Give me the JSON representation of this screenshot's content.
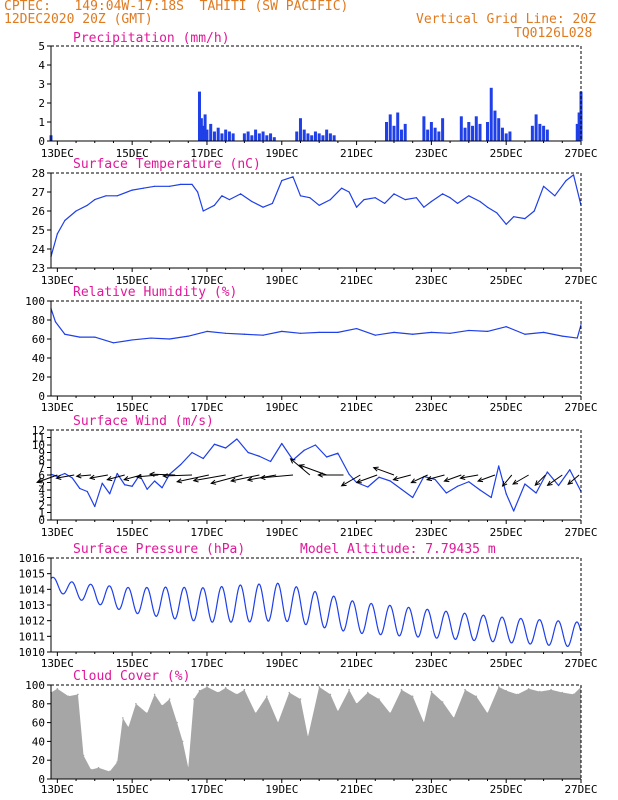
{
  "header": {
    "line1_left": "CPTEC:   149:04W-17:18S  TAHITI (SW PACIFIC)",
    "line2_left": "12DEC2020 20Z (GMT)",
    "line1_right": "Vertical Grid Line: 20Z",
    "line2_right": "TQ0126L028"
  },
  "colors": {
    "header": "#e07a1f",
    "title": "#e0189a",
    "series": "#1f3fe8",
    "cloud": "#a6a6a6",
    "arrow": "#000000"
  },
  "x_ticks": [
    "13DEC",
    "15DEC",
    "17DEC",
    "19DEC",
    "21DEC",
    "23DEC",
    "25DEC",
    "27DEC"
  ],
  "chart_data": [
    {
      "type": "bar",
      "title": "Precipitation (mm/h)",
      "ylim": [
        0,
        5
      ],
      "yticks": [
        "0",
        "1",
        "2",
        "3",
        "4",
        "5"
      ],
      "days": [
        12.83,
        16.8,
        16.85,
        16.9,
        16.95,
        17.0,
        17.1,
        17.2,
        17.3,
        17.4,
        17.5,
        17.6,
        17.7,
        18.0,
        18.1,
        18.2,
        18.3,
        18.4,
        18.5,
        18.6,
        18.7,
        18.8,
        19.4,
        19.5,
        19.6,
        19.7,
        19.8,
        19.9,
        20.0,
        20.1,
        20.2,
        20.3,
        20.4,
        21.8,
        21.9,
        22.0,
        22.1,
        22.2,
        22.3,
        22.8,
        22.9,
        23.0,
        23.1,
        23.2,
        23.3,
        23.8,
        23.9,
        24.0,
        24.1,
        24.2,
        24.3,
        24.5,
        24.6,
        24.7,
        24.8,
        24.9,
        25.0,
        25.1,
        25.7,
        25.8,
        25.9,
        26.0,
        26.1,
        26.9,
        26.95,
        27.0
      ],
      "values": [
        0.3,
        2.6,
        1.2,
        0.8,
        1.4,
        0.6,
        0.9,
        0.5,
        0.7,
        0.4,
        0.6,
        0.5,
        0.4,
        0.4,
        0.5,
        0.3,
        0.6,
        0.4,
        0.5,
        0.3,
        0.4,
        0.2,
        0.5,
        1.2,
        0.6,
        0.4,
        0.3,
        0.5,
        0.4,
        0.3,
        0.6,
        0.4,
        0.3,
        1.0,
        1.4,
        0.8,
        1.5,
        0.6,
        0.9,
        1.3,
        0.6,
        1.0,
        0.7,
        0.5,
        1.2,
        1.3,
        0.7,
        1.0,
        0.8,
        1.3,
        0.9,
        1.0,
        2.8,
        1.6,
        1.2,
        0.7,
        0.4,
        0.5,
        0.8,
        1.4,
        0.9,
        0.8,
        0.6,
        0.9,
        1.5,
        2.6
      ]
    },
    {
      "type": "line",
      "title": "Surface Temperature (nC)",
      "ylim": [
        23,
        28
      ],
      "yticks": [
        "23",
        "24",
        "25",
        "26",
        "27",
        "28"
      ],
      "x": [
        12.83,
        13.0,
        13.2,
        13.5,
        13.8,
        14.0,
        14.3,
        14.6,
        15.0,
        15.3,
        15.6,
        16.0,
        16.3,
        16.6,
        16.75,
        16.9,
        17.2,
        17.4,
        17.6,
        17.9,
        18.2,
        18.5,
        18.75,
        19.0,
        19.3,
        19.5,
        19.75,
        20.0,
        20.3,
        20.6,
        20.8,
        21.0,
        21.2,
        21.5,
        21.75,
        22.0,
        22.3,
        22.6,
        22.8,
        23.0,
        23.3,
        23.5,
        23.7,
        24.0,
        24.3,
        24.5,
        24.75,
        25.0,
        25.2,
        25.5,
        25.75,
        26.0,
        26.3,
        26.6,
        26.8,
        27.0
      ],
      "values": [
        23.6,
        24.8,
        25.5,
        26.0,
        26.3,
        26.6,
        26.8,
        26.8,
        27.1,
        27.2,
        27.3,
        27.3,
        27.4,
        27.4,
        27.0,
        26.0,
        26.3,
        26.8,
        26.6,
        26.9,
        26.5,
        26.2,
        26.4,
        27.6,
        27.8,
        26.8,
        26.7,
        26.3,
        26.6,
        27.2,
        27.0,
        26.2,
        26.6,
        26.7,
        26.4,
        26.9,
        26.6,
        26.7,
        26.2,
        26.5,
        26.9,
        26.7,
        26.4,
        26.8,
        26.5,
        26.2,
        25.9,
        25.3,
        25.7,
        25.6,
        26.0,
        27.3,
        26.8,
        27.6,
        27.9,
        26.3
      ]
    },
    {
      "type": "line",
      "title": "Relative Humidity (%)",
      "ylim": [
        0,
        100
      ],
      "yticks": [
        "0",
        "20",
        "40",
        "60",
        "80",
        "100"
      ],
      "x": [
        12.83,
        12.95,
        13.2,
        13.6,
        14.0,
        14.5,
        15.0,
        15.5,
        16.0,
        16.5,
        17.0,
        17.5,
        18.0,
        18.5,
        19.0,
        19.5,
        20.0,
        20.5,
        21.0,
        21.5,
        22.0,
        22.5,
        23.0,
        23.5,
        24.0,
        24.5,
        25.0,
        25.5,
        26.0,
        26.5,
        26.9,
        27.0
      ],
      "values": [
        92,
        78,
        65,
        62,
        62,
        56,
        59,
        61,
        60,
        63,
        68,
        66,
        65,
        64,
        68,
        66,
        67,
        67,
        71,
        64,
        67,
        65,
        67,
        66,
        69,
        68,
        73,
        65,
        67,
        63,
        61,
        75
      ]
    },
    {
      "type": "line",
      "title": "Surface Wind (m/s)",
      "ylim": [
        0,
        12
      ],
      "yticks": [
        "0",
        "1",
        "2",
        "3",
        "4",
        "5",
        "6",
        "7",
        "8",
        "9",
        "10",
        "11",
        "12"
      ],
      "x": [
        12.83,
        13.0,
        13.2,
        13.4,
        13.6,
        13.8,
        14.0,
        14.2,
        14.4,
        14.6,
        14.8,
        15.0,
        15.2,
        15.4,
        15.6,
        15.8,
        16.0,
        16.3,
        16.6,
        16.9,
        17.2,
        17.5,
        17.8,
        18.1,
        18.4,
        18.7,
        19.0,
        19.3,
        19.6,
        19.9,
        20.2,
        20.5,
        20.8,
        21.0,
        21.3,
        21.6,
        21.9,
        22.2,
        22.5,
        22.8,
        23.1,
        23.4,
        23.7,
        24.0,
        24.3,
        24.6,
        24.8,
        25.0,
        25.2,
        25.5,
        25.8,
        26.1,
        26.4,
        26.7,
        27.0
      ],
      "values": [
        6.1,
        5.8,
        6.2,
        5.6,
        4.2,
        3.8,
        1.8,
        4.9,
        3.5,
        6.2,
        4.7,
        4.5,
        6.0,
        4.1,
        5.2,
        4.3,
        6.1,
        7.4,
        9.0,
        8.2,
        10.1,
        9.6,
        10.8,
        9.0,
        8.5,
        7.8,
        10.2,
        8.0,
        9.3,
        10.0,
        8.4,
        8.9,
        6.1,
        5.0,
        4.4,
        5.7,
        5.2,
        4.1,
        3.0,
        5.8,
        5.4,
        3.6,
        4.5,
        5.1,
        4.0,
        3.0,
        7.2,
        3.5,
        1.2,
        4.8,
        3.6,
        6.4,
        4.6,
        6.7,
        3.8
      ],
      "vectors": [
        {
          "day": 13.0,
          "dir": 200,
          "mag": 6
        },
        {
          "day": 13.45,
          "dir": 190,
          "mag": 5
        },
        {
          "day": 13.9,
          "dir": 185,
          "mag": 4
        },
        {
          "day": 14.35,
          "dir": 190,
          "mag": 5
        },
        {
          "day": 14.8,
          "dir": 195,
          "mag": 5
        },
        {
          "day": 15.25,
          "dir": 195,
          "mag": 5
        },
        {
          "day": 15.7,
          "dir": 185,
          "mag": 6
        },
        {
          "day": 16.15,
          "dir": 178,
          "mag": 7
        },
        {
          "day": 16.6,
          "dir": 182,
          "mag": 8
        },
        {
          "day": 17.05,
          "dir": 192,
          "mag": 9
        },
        {
          "day": 17.5,
          "dir": 190,
          "mag": 9
        },
        {
          "day": 17.95,
          "dir": 195,
          "mag": 9
        },
        {
          "day": 18.4,
          "dir": 192,
          "mag": 8
        },
        {
          "day": 18.85,
          "dir": 190,
          "mag": 8
        },
        {
          "day": 19.3,
          "dir": 185,
          "mag": 9
        },
        {
          "day": 19.75,
          "dir": 140,
          "mag": 7
        },
        {
          "day": 20.2,
          "dir": 160,
          "mag": 8
        },
        {
          "day": 20.65,
          "dir": 180,
          "mag": 7
        },
        {
          "day": 21.1,
          "dir": 210,
          "mag": 6
        },
        {
          "day": 21.55,
          "dir": 200,
          "mag": 6
        },
        {
          "day": 22.0,
          "dir": 160,
          "mag": 6
        },
        {
          "day": 22.45,
          "dir": 195,
          "mag": 5
        },
        {
          "day": 22.9,
          "dir": 205,
          "mag": 5
        },
        {
          "day": 23.35,
          "dir": 195,
          "mag": 5
        },
        {
          "day": 23.8,
          "dir": 200,
          "mag": 5
        },
        {
          "day": 24.25,
          "dir": 190,
          "mag": 5
        },
        {
          "day": 24.7,
          "dir": 200,
          "mag": 5
        },
        {
          "day": 25.15,
          "dir": 230,
          "mag": 4
        },
        {
          "day": 25.6,
          "dir": 210,
          "mag": 5
        },
        {
          "day": 26.05,
          "dir": 225,
          "mag": 4
        },
        {
          "day": 26.5,
          "dir": 215,
          "mag": 5
        },
        {
          "day": 26.95,
          "dir": 220,
          "mag": 4
        }
      ]
    },
    {
      "type": "line",
      "title": "Surface Pressure (hPa)",
      "annotation": "Model Altitude: 7.79435 m",
      "ylim": [
        1010,
        1016
      ],
      "yticks": [
        "1010",
        "1011",
        "1012",
        "1013",
        "1014",
        "1015",
        "1016"
      ],
      "base": [
        [
          12.83,
          1014.4
        ],
        [
          13.5,
          1013.9
        ],
        [
          15,
          1013.3
        ],
        [
          17,
          1013.0
        ],
        [
          19,
          1013.2
        ],
        [
          21,
          1012.2
        ],
        [
          23,
          1011.8
        ],
        [
          25,
          1011.4
        ],
        [
          27,
          1011.1
        ]
      ],
      "amp": [
        [
          12.83,
          0.4
        ],
        [
          14,
          0.6
        ],
        [
          16,
          1.0
        ],
        [
          18,
          1.2
        ],
        [
          19,
          1.2
        ],
        [
          21,
          1.0
        ],
        [
          23,
          0.9
        ],
        [
          25,
          0.8
        ],
        [
          27,
          0.8
        ]
      ],
      "cycles_per_day": 2
    },
    {
      "type": "area",
      "title": "Cloud Cover (%)",
      "ylim": [
        0,
        100
      ],
      "yticks": [
        "0",
        "20",
        "40",
        "60",
        "80",
        "100"
      ],
      "x": [
        12.83,
        13.0,
        13.3,
        13.55,
        13.7,
        13.9,
        14.1,
        14.4,
        14.6,
        14.75,
        14.9,
        15.1,
        15.4,
        15.6,
        15.8,
        16.0,
        16.2,
        16.35,
        16.5,
        16.65,
        16.8,
        17.0,
        17.3,
        17.5,
        17.8,
        18.0,
        18.3,
        18.6,
        18.9,
        19.2,
        19.5,
        19.7,
        20.0,
        20.3,
        20.5,
        20.8,
        21.0,
        21.3,
        21.6,
        21.9,
        22.2,
        22.5,
        22.8,
        23.0,
        23.3,
        23.6,
        23.9,
        24.2,
        24.5,
        24.8,
        25.0,
        25.3,
        25.6,
        25.9,
        26.2,
        26.5,
        26.8,
        27.0
      ],
      "values": [
        92,
        96,
        88,
        90,
        25,
        10,
        12,
        8,
        18,
        65,
        55,
        80,
        70,
        90,
        78,
        85,
        60,
        40,
        12,
        85,
        94,
        98,
        92,
        97,
        90,
        95,
        70,
        88,
        60,
        92,
        85,
        45,
        98,
        90,
        72,
        95,
        80,
        92,
        85,
        70,
        95,
        88,
        60,
        93,
        82,
        65,
        95,
        88,
        70,
        98,
        94,
        90,
        96,
        93,
        95,
        92,
        90,
        98
      ]
    }
  ],
  "panels": [
    {
      "title": "Precipitation (mm/h)"
    },
    {
      "title": "Surface Temperature (nC)"
    },
    {
      "title": "Relative Humidity (%)"
    },
    {
      "title": "Surface Wind (m/s)"
    },
    {
      "title": "Surface Pressure (hPa)"
    },
    {
      "title": "Cloud Cover (%)"
    }
  ]
}
